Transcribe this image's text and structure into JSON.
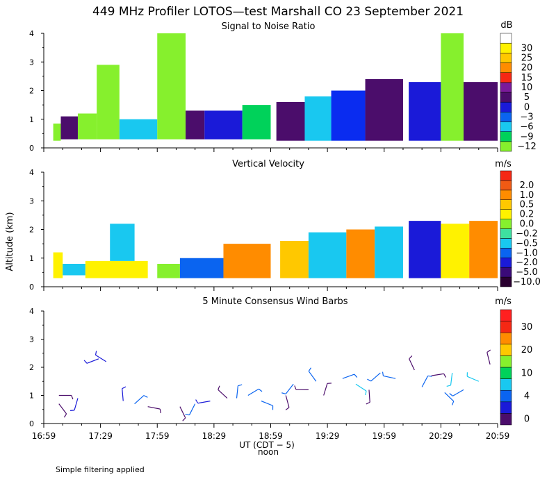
{
  "title": "449 MHz Profiler LOTOS—test Marshall CO 23 September 2021",
  "footnote": "Simple filtering applied",
  "y_axis_label": "Altitude (km)",
  "x_axis": {
    "label": "UT  (CDT − 5)",
    "noon_label": "noon",
    "range_minutes": [
      0,
      240
    ],
    "ticks": [
      {
        "minute": 0,
        "label": "16:59"
      },
      {
        "minute": 30,
        "label": "17:29"
      },
      {
        "minute": 60,
        "label": "17:59"
      },
      {
        "minute": 90,
        "label": "18:29"
      },
      {
        "minute": 120,
        "label": "18:59"
      },
      {
        "minute": 150,
        "label": "19:29"
      },
      {
        "minute": 180,
        "label": "19:59"
      },
      {
        "minute": 210,
        "label": "20:29"
      },
      {
        "minute": 240,
        "label": "20:59"
      }
    ]
  },
  "colors": {
    "gray": "#808080",
    "dark_purple": "#4b0d6b",
    "blue": "#0a2cf0",
    "green": "#00d25a",
    "lime": "#86f02d",
    "cyan": "#19c8f0",
    "yellow": "#fff200",
    "orange": "#ff8c00",
    "red": "#f52814"
  },
  "chart_data": [
    {
      "type": "heatmap",
      "title": "Signal to Noise Ratio",
      "unit": "dB",
      "ylim": [
        0,
        4
      ],
      "y_ticks": [
        "0",
        "1",
        "2",
        "3",
        "4"
      ],
      "colorbar": [
        {
          "label": "−12",
          "color": "#86f02d"
        },
        {
          "label": "−9",
          "color": "#00d25a"
        },
        {
          "label": "−6",
          "color": "#19c8f0"
        },
        {
          "label": "−3",
          "color": "#0a64f0"
        },
        {
          "label": "0",
          "color": "#1a1ad8"
        },
        {
          "label": "5",
          "color": "#4b0d6b"
        },
        {
          "label": "10",
          "color": "#7a1a9a"
        },
        {
          "label": "15",
          "color": "#f52814"
        },
        {
          "label": "20",
          "color": "#ff8c00"
        },
        {
          "label": "25",
          "color": "#ffc800"
        },
        {
          "label": "30",
          "color": "#fff200"
        },
        {
          "label": "",
          "color": "#ffffff"
        }
      ],
      "cells": [
        {
          "t": [
            5,
            9
          ],
          "z": [
            0.25,
            0.85
          ],
          "color": "#86f02d"
        },
        {
          "t": [
            9,
            18
          ],
          "z": [
            0.3,
            1.1
          ],
          "color": "#4b0d6b"
        },
        {
          "t": [
            18,
            28
          ],
          "z": [
            0.3,
            1.2
          ],
          "color": "#86f02d"
        },
        {
          "t": [
            28,
            40
          ],
          "z": [
            0.3,
            2.9
          ],
          "color": "#86f02d"
        },
        {
          "t": [
            40,
            60
          ],
          "z": [
            0.3,
            1.0
          ],
          "color": "#19c8f0"
        },
        {
          "t": [
            60,
            75
          ],
          "z": [
            0.3,
            4.0
          ],
          "color": "#86f02d"
        },
        {
          "t": [
            75,
            85
          ],
          "z": [
            0.3,
            1.3
          ],
          "color": "#4b0d6b"
        },
        {
          "t": [
            85,
            105
          ],
          "z": [
            0.3,
            1.3
          ],
          "color": "#1a1ad8"
        },
        {
          "t": [
            105,
            120
          ],
          "z": [
            0.3,
            1.5
          ],
          "color": "#00d25a"
        },
        {
          "t": [
            123,
            138
          ],
          "z": [
            0.25,
            1.6
          ],
          "color": "#4b0d6b"
        },
        {
          "t": [
            138,
            152
          ],
          "z": [
            0.25,
            1.8
          ],
          "color": "#19c8f0"
        },
        {
          "t": [
            152,
            170
          ],
          "z": [
            0.25,
            2.0
          ],
          "color": "#0a2cf0"
        },
        {
          "t": [
            170,
            190
          ],
          "z": [
            0.25,
            2.4
          ],
          "color": "#4b0d6b"
        },
        {
          "t": [
            193,
            210
          ],
          "z": [
            0.25,
            2.3
          ],
          "color": "#1a1ad8"
        },
        {
          "t": [
            210,
            222
          ],
          "z": [
            0.25,
            4.0
          ],
          "color": "#86f02d"
        },
        {
          "t": [
            222,
            240
          ],
          "z": [
            0.25,
            2.3
          ],
          "color": "#4b0d6b"
        }
      ]
    },
    {
      "type": "heatmap",
      "title": "Vertical Velocity",
      "unit": "m/s",
      "ylim": [
        0,
        4
      ],
      "y_ticks": [
        "0",
        "1",
        "2",
        "3",
        "4"
      ],
      "colorbar": [
        {
          "label": "−10.0",
          "color": "#2a0030"
        },
        {
          "label": "−5.0",
          "color": "#3a0a78"
        },
        {
          "label": "−2.0",
          "color": "#1a1ad8"
        },
        {
          "label": "−1.0",
          "color": "#0a64f0"
        },
        {
          "label": "−0.5",
          "color": "#19c8f0"
        },
        {
          "label": "−0.2",
          "color": "#3ee0a0"
        },
        {
          "label": "0.0",
          "color": "#86f02d"
        },
        {
          "label": "0.2",
          "color": "#fff200"
        },
        {
          "label": "0.5",
          "color": "#ffc800"
        },
        {
          "label": "1.0",
          "color": "#ff8c00"
        },
        {
          "label": "2.0",
          "color": "#f05a14"
        },
        {
          "label": "",
          "color": "#f52814"
        }
      ],
      "cells": [
        {
          "t": [
            5,
            10
          ],
          "z": [
            0.3,
            1.2
          ],
          "color": "#fff200"
        },
        {
          "t": [
            10,
            22
          ],
          "z": [
            0.4,
            0.8
          ],
          "color": "#19c8f0"
        },
        {
          "t": [
            22,
            55
          ],
          "z": [
            0.3,
            0.9
          ],
          "color": "#fff200"
        },
        {
          "t": [
            35,
            48
          ],
          "z": [
            0.9,
            2.2
          ],
          "color": "#19c8f0"
        },
        {
          "t": [
            60,
            72
          ],
          "z": [
            0.3,
            0.8
          ],
          "color": "#86f02d"
        },
        {
          "t": [
            72,
            95
          ],
          "z": [
            0.3,
            1.0
          ],
          "color": "#0a64f0"
        },
        {
          "t": [
            95,
            120
          ],
          "z": [
            0.3,
            1.5
          ],
          "color": "#ff8c00"
        },
        {
          "t": [
            125,
            140
          ],
          "z": [
            0.3,
            1.6
          ],
          "color": "#ffc800"
        },
        {
          "t": [
            140,
            160
          ],
          "z": [
            0.3,
            1.9
          ],
          "color": "#19c8f0"
        },
        {
          "t": [
            160,
            175
          ],
          "z": [
            0.3,
            2.0
          ],
          "color": "#ff8c00"
        },
        {
          "t": [
            175,
            190
          ],
          "z": [
            0.3,
            2.1
          ],
          "color": "#19c8f0"
        },
        {
          "t": [
            193,
            210
          ],
          "z": [
            0.3,
            2.3
          ],
          "color": "#1a1ad8"
        },
        {
          "t": [
            210,
            225
          ],
          "z": [
            0.3,
            2.2
          ],
          "color": "#fff200"
        },
        {
          "t": [
            225,
            240
          ],
          "z": [
            0.3,
            2.3
          ],
          "color": "#ff8c00"
        }
      ]
    },
    {
      "type": "wind_barbs",
      "title": "5 Minute Consensus Wind Barbs",
      "unit": "m/s",
      "ylim": [
        0,
        4
      ],
      "y_ticks": [
        "0",
        "1",
        "2",
        "3",
        "4"
      ],
      "colorbar": [
        {
          "label": "0",
          "color": "#4b0d6b"
        },
        {
          "label": "",
          "color": "#1a1ad8"
        },
        {
          "label": "4",
          "color": "#0a64f0"
        },
        {
          "label": "",
          "color": "#19c8f0"
        },
        {
          "label": "10",
          "color": "#00d25a"
        },
        {
          "label": "",
          "color": "#86f02d"
        },
        {
          "label": "20",
          "color": "#ffc800"
        },
        {
          "label": "",
          "color": "#ff8c00"
        },
        {
          "label": "30",
          "color": "#f52814"
        },
        {
          "label": "",
          "color": "#ff2020"
        }
      ],
      "barbs": [
        {
          "t": 8,
          "z": 1.0,
          "speed": 3
        },
        {
          "t": 8,
          "z": 0.7,
          "speed": 3
        },
        {
          "t": 18,
          "z": 0.9,
          "speed": 6
        },
        {
          "t": 29,
          "z": 2.3,
          "speed": 6
        },
        {
          "t": 33,
          "z": 2.2,
          "speed": 6
        },
        {
          "t": 42,
          "z": 0.8,
          "speed": 6
        },
        {
          "t": 48,
          "z": 0.7,
          "speed": 7
        },
        {
          "t": 55,
          "z": 0.6,
          "speed": 3
        },
        {
          "t": 72,
          "z": 0.6,
          "speed": 3
        },
        {
          "t": 80,
          "z": 0.7,
          "speed": 7
        },
        {
          "t": 88,
          "z": 0.8,
          "speed": 6
        },
        {
          "t": 97,
          "z": 0.9,
          "speed": 3
        },
        {
          "t": 102,
          "z": 0.9,
          "speed": 8
        },
        {
          "t": 108,
          "z": 1.0,
          "speed": 10
        },
        {
          "t": 115,
          "z": 0.8,
          "speed": 8
        },
        {
          "t": 128,
          "z": 1.0,
          "speed": 3
        },
        {
          "t": 132,
          "z": 1.4,
          "speed": 9
        },
        {
          "t": 140,
          "z": 1.2,
          "speed": 3
        },
        {
          "t": 144,
          "z": 1.5,
          "speed": 7
        },
        {
          "t": 148,
          "z": 1.0,
          "speed": 3
        },
        {
          "t": 158,
          "z": 1.6,
          "speed": 9
        },
        {
          "t": 165,
          "z": 1.4,
          "speed": 12
        },
        {
          "t": 172,
          "z": 1.2,
          "speed": 3
        },
        {
          "t": 178,
          "z": 1.8,
          "speed": 9
        },
        {
          "t": 186,
          "z": 1.6,
          "speed": 7
        },
        {
          "t": 196,
          "z": 1.9,
          "speed": 3
        },
        {
          "t": 200,
          "z": 1.3,
          "speed": 8
        },
        {
          "t": 205,
          "z": 1.7,
          "speed": 3
        },
        {
          "t": 212,
          "z": 1.1,
          "speed": 7
        },
        {
          "t": 216,
          "z": 1.8,
          "speed": 12
        },
        {
          "t": 222,
          "z": 1.2,
          "speed": 9
        },
        {
          "t": 230,
          "z": 1.5,
          "speed": 12
        },
        {
          "t": 236,
          "z": 2.1,
          "speed": 3
        }
      ]
    }
  ]
}
